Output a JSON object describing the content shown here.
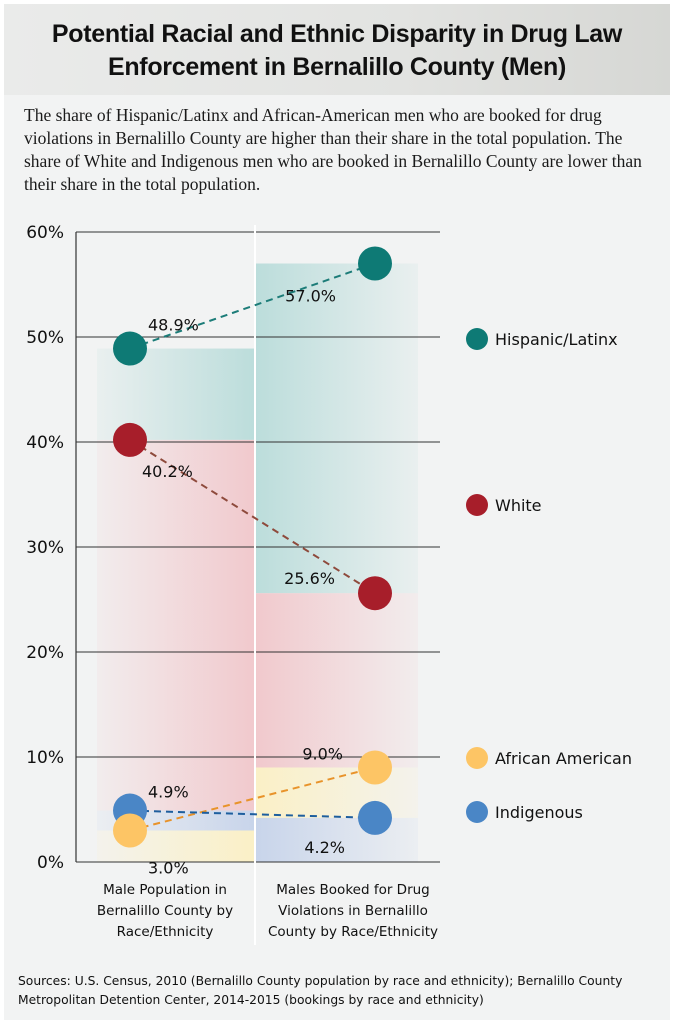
{
  "title": "Potential Racial and Ethnic Disparity in Drug Law Enforcement in Bernalillo County (Men)",
  "intro": "The share of Hispanic/Latinx and African-American men who are booked for drug violations in Bernalillo County are higher than their share in the total population. The share of White and Indigenous men who are booked in Bernalillo County are lower than their share in the total population.",
  "sources": "Sources: U.S. Census, 2010 (Bernalillo County population by race and ethnicity); Bernalillo County Metropolitan Detention Center, 2014-2015 (bookings by race and ethnicity)",
  "chart_data": {
    "type": "scatter",
    "title": "Potential Racial and Ethnic Disparity in Drug Law Enforcement in Bernalillo County (Men)",
    "xlabel": "",
    "ylabel": "",
    "ylim": [
      0,
      60
    ],
    "yticks": [
      "0%",
      "10%",
      "20%",
      "30%",
      "40%",
      "50%",
      "60%"
    ],
    "ytick_values": [
      0,
      10,
      20,
      30,
      40,
      50,
      60
    ],
    "grid": true,
    "legend_position": "right",
    "categories": [
      "Male Population in Bernalillo County by Race/Ethnicity",
      "Males Booked for Drug Violations in Bernalillo County by Race/Ethnicity"
    ],
    "series": [
      {
        "name": "Hispanic/Latinx",
        "values": [
          48.9,
          57.0
        ],
        "labels": [
          "48.9%",
          "57.0%"
        ],
        "color": "#0e7a75",
        "band_color": "#b9dcda"
      },
      {
        "name": "White",
        "values": [
          40.2,
          25.6
        ],
        "labels": [
          "40.2%",
          "25.6%"
        ],
        "color": "#a71e2a",
        "band_color": "#f1c7cb"
      },
      {
        "name": "African American",
        "values": [
          3.0,
          9.0
        ],
        "labels": [
          "3.0%",
          "9.0%"
        ],
        "color": "#fdc565",
        "band_color": "#fbf0c4"
      },
      {
        "name": "Indigenous",
        "values": [
          4.9,
          4.2
        ],
        "labels": [
          "4.9%",
          "4.2%"
        ],
        "color": "#4a86c6",
        "band_color": "#c6d3ea"
      }
    ]
  }
}
